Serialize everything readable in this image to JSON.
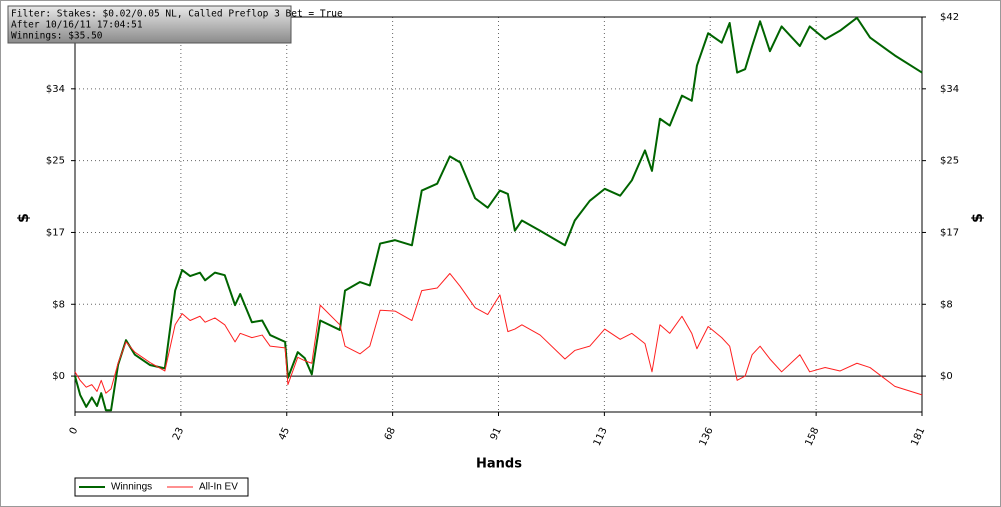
{
  "chart_data": {
    "type": "line",
    "info": [
      "Filter: Stakes: $0.02/0.05 NL, Called Preflop 3 Bet = True",
      "After 10/16/11 17:04:51",
      "Winnings: $35.50"
    ],
    "x_label": "Hands",
    "y_label": "$",
    "y2_label": "$",
    "x": [
      0,
      1.1,
      2.4,
      3.6,
      4.7,
      5.6,
      6.6,
      7.7,
      9.2,
      10.9,
      12.8,
      16,
      19.2,
      21.4,
      22.9,
      24.6,
      26.7,
      27.8,
      29.9,
      32,
      34.2,
      35.3,
      37.8,
      40,
      41.7,
      44.9,
      45.5,
      47.6,
      49.1,
      50.6,
      52.4,
      56.6,
      57.7,
      60.9,
      63,
      65.2,
      68.4,
      72,
      74.1,
      77.4,
      80.1,
      82.3,
      85.5,
      88.2,
      90.8,
      92.5,
      94,
      95.5,
      99.4,
      104.7,
      106.8,
      110,
      113.2,
      116.5,
      119,
      121.8,
      123.3,
      125,
      127.1,
      129.7,
      131.8,
      132.9,
      135.3,
      138.2,
      139.9,
      141.5,
      143.2,
      144.7,
      146.4,
      148.5,
      151,
      154.9,
      157,
      160.3,
      163.5,
      167.1,
      169.9,
      175.2,
      181
    ],
    "series": [
      {
        "name": "Winnings",
        "color": "#006400",
        "width": 2,
        "values": [
          0,
          -2.2,
          -3.6,
          -2.5,
          -3.5,
          -2.0,
          -4.0,
          -4.0,
          1.3,
          4.2,
          2.5,
          1.3,
          0.9,
          10,
          12.4,
          11.7,
          12.1,
          11.2,
          12.1,
          11.8,
          8.3,
          9.6,
          6.3,
          6.5,
          4.8,
          4.0,
          -0.2,
          2.8,
          2.1,
          0.2,
          6.5,
          5.4,
          10,
          11,
          10.6,
          15.5,
          15.9,
          15.3,
          21.7,
          22.5,
          25.7,
          25,
          20.8,
          19.7,
          21.7,
          21.3,
          17,
          18.2,
          17,
          15.3,
          18.2,
          20.5,
          21.9,
          21.1,
          22.9,
          26.4,
          24,
          30.1,
          29.3,
          32.8,
          32.2,
          36.3,
          40.1,
          39,
          41.3,
          35.5,
          35.9,
          38.6,
          41.5,
          38,
          40.9,
          38.6,
          40.9,
          39.4,
          40.4,
          41.9,
          39.6,
          37.5,
          35.5
        ]
      },
      {
        "name": "All-In EV",
        "color": "#ff2020",
        "width": 1,
        "values": [
          0.5,
          -0.5,
          -1.3,
          -1.0,
          -1.8,
          -0.5,
          -2.0,
          -1.5,
          1.5,
          4.0,
          2.8,
          1.6,
          0.6,
          6,
          7.3,
          6.5,
          7,
          6.3,
          6.8,
          6,
          4,
          5,
          4.5,
          4.8,
          3.5,
          3.3,
          -1.0,
          2.2,
          1.8,
          1.5,
          8.3,
          6,
          3.5,
          2.6,
          3.5,
          7.7,
          7.6,
          6.5,
          10,
          10.3,
          12,
          10.5,
          8,
          7.2,
          9.5,
          5.2,
          5.5,
          6,
          4.8,
          2,
          3,
          3.5,
          5.5,
          4.3,
          5,
          3.8,
          0.5,
          6,
          5,
          7,
          5,
          3.2,
          5.8,
          4.5,
          3.5,
          -0.5,
          0,
          2.5,
          3.5,
          2,
          0.5,
          2.5,
          0.5,
          1,
          0.6,
          1.5,
          1,
          -1.2,
          -2.2
        ]
      }
    ],
    "xlim": [
      0,
      181
    ],
    "ylim": [
      -4.2,
      42
    ],
    "xticks": [
      0,
      {
        "value": 22.625,
        "label": "23"
      },
      {
        "value": 45.25,
        "label": "45"
      },
      {
        "value": 67.875,
        "label": "68"
      },
      {
        "value": 90.5,
        "label": "91"
      },
      {
        "value": 113.125,
        "label": "113"
      },
      {
        "value": 135.75,
        "label": "136"
      },
      {
        "value": 158.375,
        "label": "158"
      },
      181
    ],
    "yticks": [
      {
        "value": 0,
        "label": "$0"
      },
      {
        "value": 8.4,
        "label": "$8"
      },
      {
        "value": 16.8,
        "label": "$17"
      },
      {
        "value": 25.2,
        "label": "$25"
      },
      {
        "value": 33.6,
        "label": "$34"
      },
      {
        "value": 42,
        "label": "$42"
      }
    ],
    "grid": true,
    "legend": "bottom-left"
  }
}
